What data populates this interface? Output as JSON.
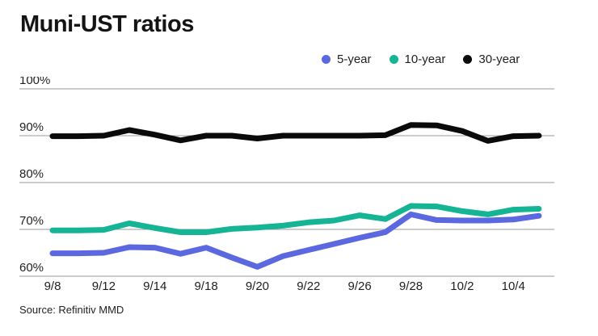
{
  "title": "Muni-UST ratios",
  "source": "Source: Refinitiv MMD",
  "colors": {
    "five_year": "#5b68e0",
    "ten_year": "#15b494",
    "thirty_year": "#0a0a0a",
    "gridline": "#999999",
    "axis_text": "#1f1f1f"
  },
  "legend": {
    "items": [
      {
        "label": "5-year",
        "color": "#5b68e0"
      },
      {
        "label": "10-year",
        "color": "#15b494"
      },
      {
        "label": "30-year",
        "color": "#0a0a0a"
      }
    ]
  },
  "chart_data": {
    "type": "line",
    "title": "Muni-UST ratios",
    "xlabel": "",
    "ylabel": "",
    "ylim": [
      60,
      100
    ],
    "grid": "horizontal",
    "legend_position": "top-right",
    "y_ticks": [
      {
        "value": 100,
        "label": "100%"
      },
      {
        "value": 90,
        "label": "90%"
      },
      {
        "value": 80,
        "label": "80%"
      },
      {
        "value": 70,
        "label": "70%"
      },
      {
        "value": 60,
        "label": "60%"
      }
    ],
    "x_tick_labels": [
      "9/8",
      "9/12",
      "9/14",
      "9/18",
      "9/20",
      "9/22",
      "9/26",
      "9/28",
      "10/2",
      "10/4"
    ],
    "points_per_tick": 2,
    "points_count": 20,
    "series": [
      {
        "name": "5-year",
        "color": "#5b68e0",
        "values": [
          64.9,
          64.9,
          65.0,
          66.2,
          66.1,
          64.8,
          66.1,
          64.0,
          62.0,
          64.3,
          65.6,
          66.9,
          68.2,
          69.4,
          73.2,
          72.0,
          71.9,
          71.9,
          72.1,
          72.9
        ]
      },
      {
        "name": "10-year",
        "color": "#15b494",
        "values": [
          69.8,
          69.8,
          69.9,
          71.3,
          70.3,
          69.4,
          69.4,
          70.1,
          70.4,
          70.8,
          71.5,
          71.9,
          73.0,
          72.2,
          75.0,
          74.9,
          73.9,
          73.2,
          74.2,
          74.4
        ]
      },
      {
        "name": "30-year",
        "color": "#0a0a0a",
        "values": [
          89.9,
          89.9,
          90.0,
          91.2,
          90.2,
          89.0,
          90.0,
          90.0,
          89.4,
          90.0,
          90.0,
          90.0,
          90.0,
          90.1,
          92.3,
          92.2,
          91.0,
          88.9,
          89.9,
          90.0
        ]
      }
    ]
  }
}
